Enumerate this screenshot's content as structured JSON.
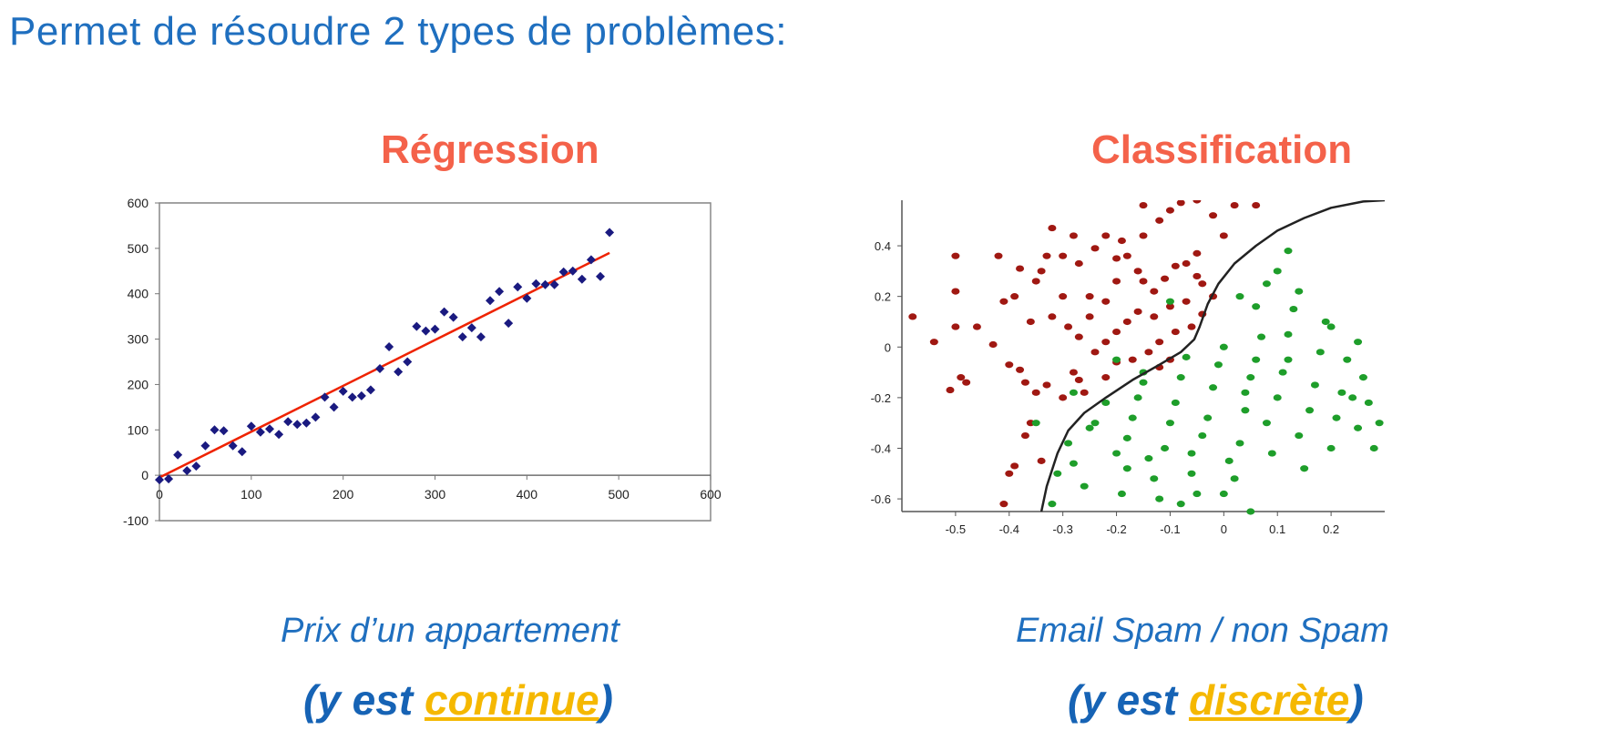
{
  "slide": {
    "title": "Permet de résoudre 2 types de problèmes:"
  },
  "regression": {
    "title": "Régression",
    "caption": "Prix d’un appartement",
    "kind_prefix": "(y est ",
    "kind_word": "continue",
    "kind_suffix": ")"
  },
  "classification": {
    "title": "Classification",
    "caption": "Email Spam / non Spam",
    "kind_prefix": "(y est ",
    "kind_word": "discrète",
    "kind_suffix": ")"
  },
  "colors": {
    "title_blue": "#1f6fbf",
    "panel_title_red": "#f4624a",
    "highlight_yellow": "#f5b800",
    "point_navy": "#1a1a80",
    "fit_line_red": "#ee2200",
    "class_red": "#a01812",
    "class_green": "#1e9e2a",
    "boundary": "#222222"
  },
  "chart_data": [
    {
      "type": "scatter",
      "title": "",
      "xlabel": "",
      "ylabel": "",
      "xlim": [
        0,
        600
      ],
      "ylim": [
        -100,
        600
      ],
      "x_ticks": [
        0,
        100,
        200,
        300,
        400,
        500,
        600
      ],
      "y_ticks": [
        -100,
        0,
        100,
        200,
        300,
        400,
        500,
        600
      ],
      "x_tick_labels": [
        "0",
        "100",
        "200",
        "300",
        "400",
        "500",
        "600"
      ],
      "y_tick_labels": [
        "-100",
        "0",
        "100",
        "200",
        "300",
        "400",
        "500",
        "600"
      ],
      "grid": "horizontal",
      "fit_line": {
        "x": [
          0,
          490
        ],
        "y": [
          -5,
          490
        ]
      },
      "points": [
        [
          0,
          -10
        ],
        [
          10,
          -8
        ],
        [
          20,
          45
        ],
        [
          30,
          10
        ],
        [
          40,
          20
        ],
        [
          50,
          65
        ],
        [
          60,
          100
        ],
        [
          70,
          98
        ],
        [
          80,
          65
        ],
        [
          90,
          52
        ],
        [
          100,
          108
        ],
        [
          110,
          95
        ],
        [
          120,
          102
        ],
        [
          130,
          90
        ],
        [
          140,
          118
        ],
        [
          150,
          112
        ],
        [
          160,
          115
        ],
        [
          170,
          128
        ],
        [
          180,
          172
        ],
        [
          190,
          150
        ],
        [
          200,
          185
        ],
        [
          210,
          172
        ],
        [
          220,
          175
        ],
        [
          230,
          188
        ],
        [
          240,
          235
        ],
        [
          250,
          283
        ],
        [
          260,
          228
        ],
        [
          270,
          250
        ],
        [
          280,
          328
        ],
        [
          290,
          318
        ],
        [
          300,
          322
        ],
        [
          310,
          360
        ],
        [
          320,
          348
        ],
        [
          330,
          305
        ],
        [
          340,
          325
        ],
        [
          350,
          305
        ],
        [
          360,
          385
        ],
        [
          370,
          405
        ],
        [
          380,
          335
        ],
        [
          390,
          415
        ],
        [
          400,
          390
        ],
        [
          410,
          422
        ],
        [
          420,
          420
        ],
        [
          430,
          420
        ],
        [
          440,
          448
        ],
        [
          450,
          450
        ],
        [
          460,
          432
        ],
        [
          470,
          475
        ],
        [
          480,
          438
        ],
        [
          490,
          535
        ]
      ]
    },
    {
      "type": "scatter",
      "title": "",
      "xlabel": "",
      "ylabel": "",
      "xlim": [
        -0.6,
        0.3
      ],
      "ylim": [
        -0.65,
        0.58
      ],
      "x_ticks": [
        -0.5,
        -0.4,
        -0.3,
        -0.2,
        -0.1,
        0,
        0.1,
        0.2
      ],
      "y_ticks": [
        -0.6,
        -0.4,
        -0.2,
        0,
        0.2,
        0.4
      ],
      "x_tick_labels": [
        "-0.5",
        "-0.4",
        "-0.3",
        "-0.2",
        "-0.1",
        "0",
        "0.1",
        "0.2"
      ],
      "y_tick_labels": [
        "-0.6",
        "-0.4",
        "-0.2",
        "0",
        "0.2",
        "0.4"
      ],
      "grid": "none",
      "decision_boundary": {
        "x": [
          -0.34,
          -0.33,
          -0.31,
          -0.29,
          -0.26,
          -0.22,
          -0.17,
          -0.12,
          -0.08,
          -0.055,
          -0.045,
          -0.03,
          -0.01,
          0.02,
          0.06,
          0.1,
          0.15,
          0.2,
          0.26,
          0.3
        ],
        "y": [
          -0.65,
          -0.55,
          -0.42,
          -0.33,
          -0.26,
          -0.2,
          -0.13,
          -0.07,
          -0.02,
          0.03,
          0.08,
          0.17,
          0.25,
          0.33,
          0.4,
          0.46,
          0.51,
          0.55,
          0.575,
          0.58
        ]
      },
      "series": [
        {
          "color": "red",
          "points": [
            [
              -0.58,
              0.12
            ],
            [
              -0.54,
              0.02
            ],
            [
              -0.5,
              0.36
            ],
            [
              -0.5,
              0.22
            ],
            [
              -0.5,
              0.08
            ],
            [
              -0.49,
              -0.12
            ],
            [
              -0.48,
              -0.14
            ],
            [
              -0.51,
              -0.17
            ],
            [
              -0.46,
              0.08
            ],
            [
              -0.42,
              0.36
            ],
            [
              -0.41,
              0.18
            ],
            [
              -0.39,
              0.2
            ],
            [
              -0.43,
              0.01
            ],
            [
              -0.4,
              -0.07
            ],
            [
              -0.38,
              -0.09
            ],
            [
              -0.37,
              -0.14
            ],
            [
              -0.36,
              0.1
            ],
            [
              -0.35,
              0.26
            ],
            [
              -0.34,
              0.3
            ],
            [
              -0.33,
              0.36
            ],
            [
              -0.32,
              0.47
            ],
            [
              -0.3,
              0.2
            ],
            [
              -0.29,
              0.08
            ],
            [
              -0.27,
              0.04
            ],
            [
              -0.28,
              -0.1
            ],
            [
              -0.26,
              -0.18
            ],
            [
              -0.3,
              -0.2
            ],
            [
              -0.33,
              -0.15
            ],
            [
              -0.35,
              -0.18
            ],
            [
              -0.37,
              -0.35
            ],
            [
              -0.39,
              -0.47
            ],
            [
              -0.4,
              -0.5
            ],
            [
              -0.41,
              -0.62
            ],
            [
              -0.36,
              -0.3
            ],
            [
              -0.34,
              -0.45
            ],
            [
              -0.27,
              0.33
            ],
            [
              -0.24,
              0.39
            ],
            [
              -0.22,
              0.44
            ],
            [
              -0.2,
              0.35
            ],
            [
              -0.18,
              0.36
            ],
            [
              -0.16,
              0.3
            ],
            [
              -0.15,
              0.26
            ],
            [
              -0.13,
              0.22
            ],
            [
              -0.11,
              0.27
            ],
            [
              -0.09,
              0.32
            ],
            [
              -0.07,
              0.33
            ],
            [
              -0.05,
              0.28
            ],
            [
              -0.04,
              0.25
            ],
            [
              -0.07,
              0.18
            ],
            [
              -0.1,
              0.16
            ],
            [
              -0.13,
              0.12
            ],
            [
              -0.16,
              0.14
            ],
            [
              -0.18,
              0.1
            ],
            [
              -0.2,
              0.06
            ],
            [
              -0.22,
              0.02
            ],
            [
              -0.24,
              -0.02
            ],
            [
              -0.2,
              -0.06
            ],
            [
              -0.17,
              -0.05
            ],
            [
              -0.14,
              -0.02
            ],
            [
              -0.12,
              0.02
            ],
            [
              -0.09,
              0.06
            ],
            [
              -0.06,
              0.08
            ],
            [
              -0.04,
              0.13
            ],
            [
              -0.02,
              0.2
            ],
            [
              -0.15,
              0.44
            ],
            [
              -0.12,
              0.5
            ],
            [
              -0.1,
              0.54
            ],
            [
              -0.08,
              0.57
            ],
            [
              -0.05,
              0.58
            ],
            [
              -0.02,
              0.52
            ],
            [
              0.02,
              0.56
            ],
            [
              0.06,
              0.56
            ],
            [
              -0.15,
              0.56
            ],
            [
              -0.19,
              0.42
            ],
            [
              -0.28,
              0.44
            ],
            [
              -0.22,
              0.18
            ],
            [
              -0.25,
              0.12
            ],
            [
              -0.27,
              -0.13
            ],
            [
              -0.22,
              -0.12
            ],
            [
              -0.1,
              -0.05
            ],
            [
              -0.12,
              -0.08
            ],
            [
              -0.25,
              0.2
            ],
            [
              -0.3,
              0.36
            ],
            [
              -0.05,
              0.37
            ],
            [
              0.0,
              0.44
            ],
            [
              -0.2,
              0.26
            ],
            [
              -0.32,
              0.12
            ],
            [
              -0.38,
              0.31
            ]
          ]
        },
        {
          "color": "green",
          "points": [
            [
              -0.32,
              -0.62
            ],
            [
              -0.31,
              -0.5
            ],
            [
              -0.29,
              -0.38
            ],
            [
              -0.28,
              -0.46
            ],
            [
              -0.26,
              -0.55
            ],
            [
              -0.24,
              -0.3
            ],
            [
              -0.22,
              -0.22
            ],
            [
              -0.2,
              -0.42
            ],
            [
              -0.19,
              -0.58
            ],
            [
              -0.18,
              -0.36
            ],
            [
              -0.17,
              -0.28
            ],
            [
              -0.16,
              -0.2
            ],
            [
              -0.15,
              -0.14
            ],
            [
              -0.14,
              -0.44
            ],
            [
              -0.13,
              -0.52
            ],
            [
              -0.12,
              -0.6
            ],
            [
              -0.11,
              -0.4
            ],
            [
              -0.1,
              -0.3
            ],
            [
              -0.09,
              -0.22
            ],
            [
              -0.08,
              -0.12
            ],
            [
              -0.07,
              -0.04
            ],
            [
              -0.06,
              -0.5
            ],
            [
              -0.05,
              -0.58
            ],
            [
              -0.04,
              -0.35
            ],
            [
              -0.03,
              -0.28
            ],
            [
              -0.02,
              -0.16
            ],
            [
              -0.01,
              -0.07
            ],
            [
              0.0,
              0.0
            ],
            [
              0.01,
              -0.45
            ],
            [
              0.02,
              -0.52
            ],
            [
              0.03,
              -0.38
            ],
            [
              0.04,
              -0.25
            ],
            [
              0.05,
              -0.12
            ],
            [
              0.06,
              -0.05
            ],
            [
              0.07,
              0.04
            ],
            [
              0.08,
              -0.3
            ],
            [
              0.09,
              -0.42
            ],
            [
              0.1,
              -0.2
            ],
            [
              0.11,
              -0.1
            ],
            [
              0.12,
              0.05
            ],
            [
              0.13,
              0.15
            ],
            [
              0.14,
              -0.35
            ],
            [
              0.15,
              -0.48
            ],
            [
              0.16,
              -0.25
            ],
            [
              0.17,
              -0.15
            ],
            [
              0.18,
              -0.02
            ],
            [
              0.19,
              0.1
            ],
            [
              0.2,
              -0.4
            ],
            [
              0.21,
              -0.28
            ],
            [
              0.22,
              -0.18
            ],
            [
              0.23,
              -0.05
            ],
            [
              0.24,
              -0.2
            ],
            [
              0.25,
              -0.32
            ],
            [
              0.26,
              -0.12
            ],
            [
              0.27,
              -0.22
            ],
            [
              0.28,
              -0.4
            ],
            [
              0.29,
              -0.3
            ],
            [
              0.03,
              0.2
            ],
            [
              0.06,
              0.16
            ],
            [
              0.08,
              0.25
            ],
            [
              0.1,
              0.3
            ],
            [
              0.12,
              0.38
            ],
            [
              0.14,
              0.22
            ],
            [
              -0.1,
              0.18
            ],
            [
              -0.15,
              -0.1
            ],
            [
              -0.2,
              -0.05
            ],
            [
              -0.28,
              -0.18
            ],
            [
              -0.35,
              -0.3
            ],
            [
              -0.25,
              -0.32
            ],
            [
              -0.18,
              -0.48
            ],
            [
              -0.08,
              -0.62
            ],
            [
              0.0,
              -0.58
            ],
            [
              0.05,
              -0.65
            ],
            [
              -0.06,
              -0.42
            ],
            [
              0.04,
              -0.18
            ],
            [
              0.12,
              -0.05
            ],
            [
              0.2,
              0.08
            ],
            [
              0.25,
              0.02
            ]
          ]
        }
      ]
    }
  ]
}
